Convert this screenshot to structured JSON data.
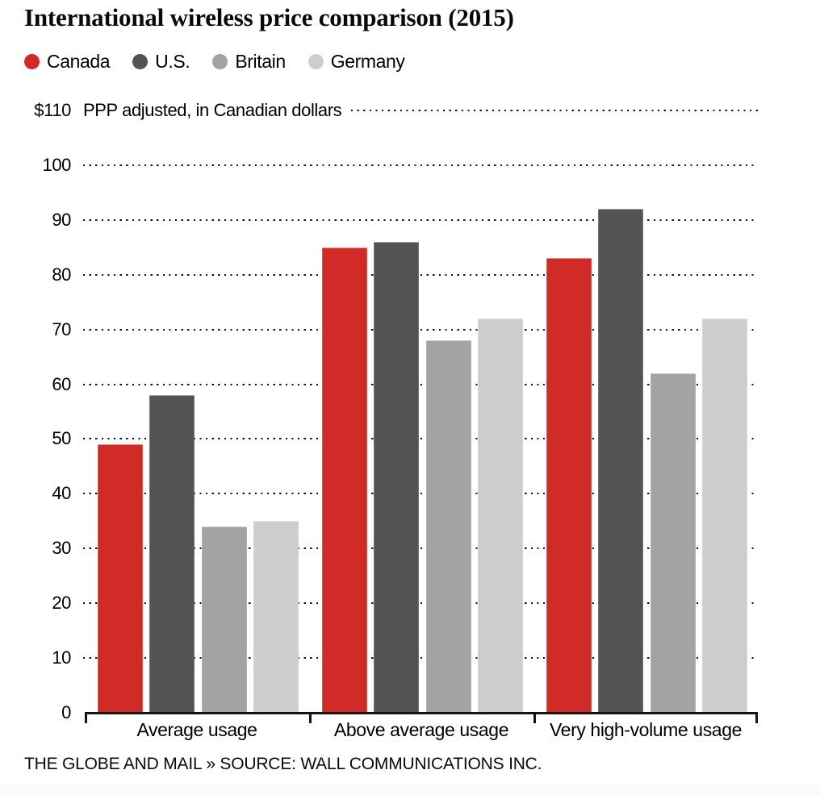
{
  "title": "International wireless price comparison (2015)",
  "footer": "THE GLOBE AND MAIL » SOURCE: WALL COMMUNICATIONS INC.",
  "colors": {
    "canada": "#d02b26",
    "us": "#545454",
    "britain": "#a3a3a3",
    "germany": "#cdcdcd",
    "grid": "#111111",
    "axis": "#141414",
    "text": "#000000",
    "bottom_band": "#fafafa"
  },
  "chart_data": {
    "type": "bar",
    "title": "International wireless price comparison (2015)",
    "unit_note": "PPP adjusted, in Canadian dollars",
    "categories": [
      "Average usage",
      "Above average usage",
      "Very high-volume usage"
    ],
    "series": [
      {
        "name": "Canada",
        "color": "#d02b26",
        "values": [
          49,
          85,
          83
        ]
      },
      {
        "name": "U.S.",
        "color": "#545454",
        "values": [
          58,
          86,
          92
        ]
      },
      {
        "name": "Britain",
        "color": "#a3a3a3",
        "values": [
          34,
          68,
          62
        ]
      },
      {
        "name": "Germany",
        "color": "#cdcdcd",
        "values": [
          35,
          72,
          72
        ]
      }
    ],
    "yaxis": {
      "ticks": [
        0,
        10,
        20,
        30,
        40,
        50,
        60,
        70,
        80,
        90,
        100,
        110
      ],
      "top_tick_label": "$110",
      "ylim": [
        0,
        110
      ],
      "grid": "dotted-horizontal"
    },
    "legend_position": "top-left",
    "xlabel": "",
    "ylabel": "PPP adjusted, in Canadian dollars"
  }
}
